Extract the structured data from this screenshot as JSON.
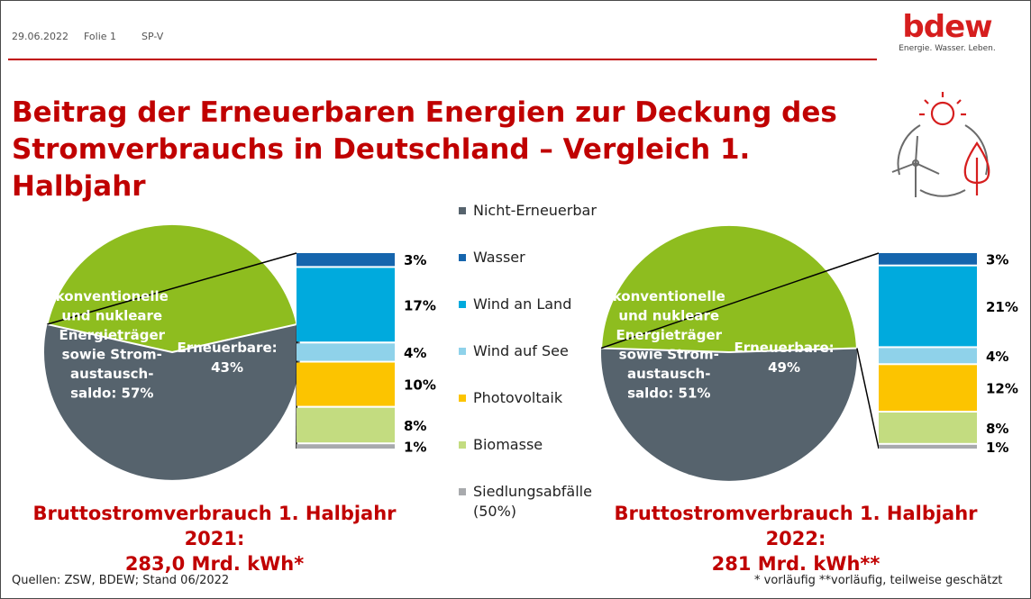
{
  "header": {
    "date": "29.06.2022",
    "slide": "Folie 1",
    "code": "SP-V"
  },
  "logo": {
    "word": "bdew",
    "tagline": "Energie. Wasser. Leben."
  },
  "title": "Beitrag der Erneuerbaren Energien zur Deckung des Stromverbrauchs in Deutschland – Vergleich 1. Halbjahr",
  "colors": {
    "brand": "#c00000",
    "non_renewable": "#56636d",
    "renewable": "#8ebd1f"
  },
  "chart_data": [
    {
      "type": "pie",
      "slices": [
        {
          "name": "konventionelle und nukleare Energieträger sowie Stromaustauschsaldo",
          "value": 57,
          "label_lines": [
            "konventionelle",
            "und nukleare",
            "Energieträger",
            "sowie Strom-",
            "austausch-",
            "saldo: 57%"
          ]
        },
        {
          "name": "Erneuerbare",
          "value": 43,
          "label_lines": [
            "Erneuerbare:",
            "43%"
          ]
        }
      ],
      "breakdown": {
        "type": "bar",
        "stacked": true,
        "categories": [
          "Wasser",
          "Wind an Land",
          "Wind auf See",
          "Photovoltaik",
          "Biomasse",
          "Siedlungsabfälle (50%)"
        ],
        "values": [
          3,
          17,
          4,
          10,
          8,
          1
        ],
        "labels": [
          "3%",
          "17%",
          "4%",
          "10%",
          "8%",
          "1%"
        ]
      },
      "caption": [
        "Bruttostromverbrauch 1. Halbjahr 2021:",
        "283,0 Mrd. kWh*"
      ]
    },
    {
      "type": "pie",
      "slices": [
        {
          "name": "konventionelle und nukleare Energieträger sowie Stromaustauschsaldo",
          "value": 51,
          "label_lines": [
            "konventionelle",
            "und nukleare",
            "Energieträger",
            "sowie Strom-",
            "austausch-",
            "saldo: 51%"
          ]
        },
        {
          "name": "Erneuerbare",
          "value": 49,
          "label_lines": [
            "Erneuerbare:",
            "49%"
          ]
        }
      ],
      "breakdown": {
        "type": "bar",
        "stacked": true,
        "categories": [
          "Wasser",
          "Wind an Land",
          "Wind auf See",
          "Photovoltaik",
          "Biomasse",
          "Siedlungsabfälle (50%)"
        ],
        "values": [
          3,
          21,
          4,
          12,
          8,
          1
        ],
        "labels": [
          "3%",
          "21%",
          "4%",
          "12%",
          "8%",
          "1%"
        ]
      },
      "caption": [
        "Bruttostromverbrauch 1. Halbjahr 2022:",
        "281 Mrd. kWh**"
      ]
    }
  ],
  "legend": [
    {
      "label": "Nicht-Erneuerbar",
      "color": "#56636d"
    },
    {
      "label": "Wasser",
      "color": "#1565ad"
    },
    {
      "label": "Wind an Land",
      "color": "#00aadd"
    },
    {
      "label": "Wind auf See",
      "color": "#8fd2ea"
    },
    {
      "label": "Photovoltaik",
      "color": "#fcc400"
    },
    {
      "label": "Biomasse",
      "color": "#c3dc80"
    },
    {
      "label": "Siedlungsabfälle",
      "color": "#a8aaad",
      "sub": "(50%)"
    }
  ],
  "footer": {
    "source": "Quellen: ZSW, BDEW; Stand 06/2022",
    "note": "* vorläufig **vorläufig, teilweise geschätzt"
  }
}
